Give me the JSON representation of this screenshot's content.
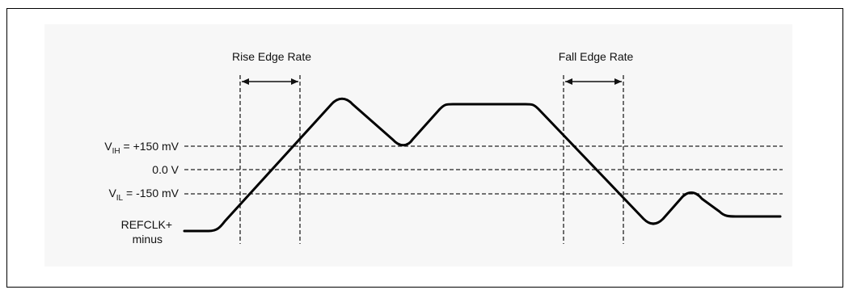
{
  "diagram": {
    "rise_label": "Rise Edge Rate",
    "fall_label": "Fall Edge Rate",
    "vih": {
      "prefix": "V",
      "sub": "IH",
      "value": " = +150 mV"
    },
    "zero": "0.0 V",
    "vil": {
      "prefix": "V",
      "sub": "IL",
      "value": " = -150 mV"
    },
    "signal_line1": "REFCLK+",
    "signal_line2": "minus"
  }
}
